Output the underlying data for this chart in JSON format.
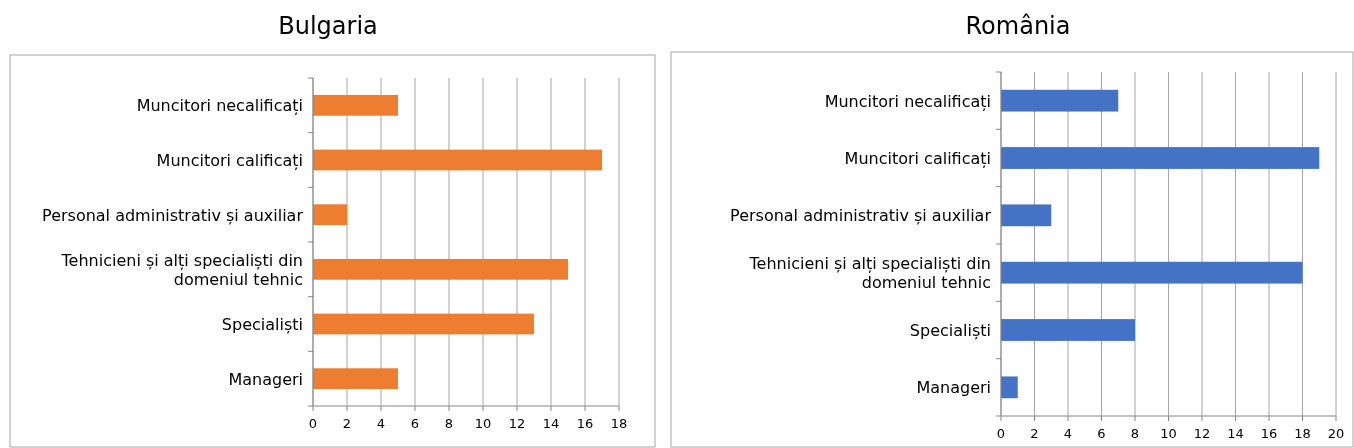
{
  "chart_data": [
    {
      "type": "bar",
      "title": "Bulgaria",
      "orientation": "horizontal",
      "categories": [
        "Muncitori necalificați",
        "Muncitori calificați",
        "Personal administrativ și auxiliar",
        "Tehnicieni și alți specialiști din domeniul tehnic",
        "Specialiști",
        "Manageri"
      ],
      "values": [
        5,
        17,
        2,
        15,
        13,
        5
      ],
      "color": "#ed7d31",
      "xlim": [
        0,
        18
      ],
      "xticks": [
        0,
        2,
        4,
        6,
        8,
        10,
        12,
        14,
        16,
        18
      ],
      "grid": "x"
    },
    {
      "type": "bar",
      "title": "România",
      "orientation": "horizontal",
      "categories": [
        "Muncitori necalificați",
        "Muncitori calificați",
        "Personal administrativ și auxiliar",
        "Tehnicieni și alți specialiști din domeniul tehnic",
        "Specialiști",
        "Manageri"
      ],
      "values": [
        7,
        19,
        3,
        18,
        8,
        1
      ],
      "color": "#4472c4",
      "xlim": [
        0,
        20
      ],
      "xticks": [
        0,
        2,
        4,
        6,
        8,
        10,
        12,
        14,
        16,
        18,
        20
      ],
      "grid": "x"
    }
  ]
}
